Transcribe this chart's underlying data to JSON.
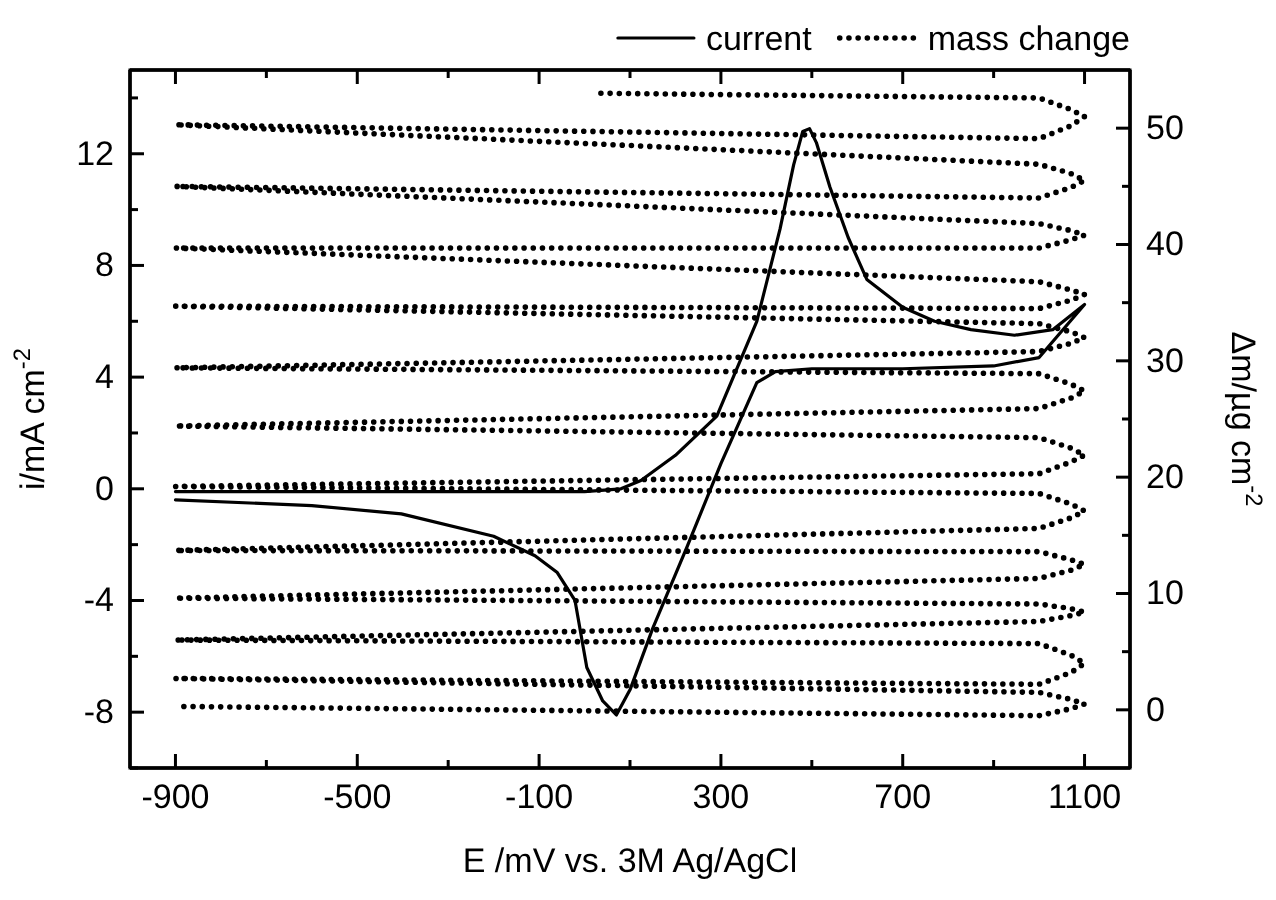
{
  "chart_data": {
    "type": "line",
    "xlabel": "E /mV vs. 3M Ag/AgCl",
    "ylabel": "i/mA cm$^{-2}$",
    "y2label": "Δm/µg cm$^{-2}$",
    "xlim": [
      -1000,
      1200
    ],
    "xticks": [
      -900,
      {
        "value": -700,
        "label": null
      },
      -500,
      {
        "value": -300,
        "label": null
      },
      -100,
      {
        "value": 100,
        "label": null
      },
      300,
      {
        "value": 500,
        "label": null
      },
      700,
      {
        "value": 900,
        "label": null
      },
      1100
    ],
    "ylim": [
      -10,
      15
    ],
    "yticks": [
      {
        "value": -10,
        "label": null
      },
      -8,
      {
        "value": -6,
        "label": null
      },
      -4,
      {
        "value": -2,
        "label": null
      },
      0,
      {
        "value": 2,
        "label": null
      },
      4,
      {
        "value": 6,
        "label": null
      },
      8,
      {
        "value": 10,
        "label": null
      },
      12,
      {
        "value": 14,
        "label": null
      }
    ],
    "y2lim": [
      -5,
      55
    ],
    "y2ticks": [
      0,
      {
        "value": 5,
        "label": null
      },
      10,
      {
        "value": 15,
        "label": null
      },
      20,
      {
        "value": 25,
        "label": null
      },
      30,
      {
        "value": 35,
        "label": null
      },
      40,
      {
        "value": 45,
        "label": null
      },
      50
    ],
    "legend": "top right",
    "grid": false,
    "marker": "none",
    "series": [
      {
        "name": "current",
        "color": "#000000",
        "line_style": "solid",
        "x": [
          -900,
          -500,
          -100,
          0,
          80,
          124,
          200,
          291,
          379,
          430,
          460,
          480,
          495,
          510,
          540,
          580,
          621,
          700,
          770,
          850,
          946,
          1030,
          1100,
          1000,
          900,
          700,
          500,
          420,
          379,
          300,
          225,
          150,
          100,
          70,
          40,
          5,
          -21,
          -60,
          -109,
          -200,
          -403,
          -600,
          -900
        ],
        "values": [
          -0.1,
          -0.1,
          -0.1,
          -0.1,
          0.0,
          0.3,
          1.2,
          2.6,
          6.0,
          9.3,
          11.6,
          12.8,
          12.9,
          12.4,
          10.8,
          9.0,
          7.5,
          6.5,
          6.0,
          5.7,
          5.5,
          5.7,
          6.6,
          4.7,
          4.4,
          4.3,
          4.3,
          4.2,
          3.8,
          0.9,
          -2.1,
          -5.0,
          -7.2,
          -8.1,
          -7.6,
          -6.4,
          -4.0,
          -3.0,
          -2.4,
          -1.7,
          -0.9,
          -0.6,
          -0.4
        ]
      },
      {
        "name": "mass change",
        "color": "#000000",
        "line_style": "dotted",
        "axis": "y2",
        "x": [
          36,
          1000,
          1070,
          1100,
          1070,
          1000,
          -900,
          1000,
          1070,
          1100,
          1070,
          1000,
          -900,
          1000,
          1070,
          1100,
          1070,
          1000,
          -900,
          1000,
          1070,
          1100,
          1070,
          1000,
          -900,
          1000,
          1070,
          1100,
          1070,
          1000,
          -900,
          1000,
          1070,
          1100,
          1070,
          1000,
          -900,
          1000,
          1070,
          1100,
          1070,
          1000,
          -900,
          1000,
          1070,
          1100,
          1070,
          1000,
          -900,
          1000,
          1070,
          1100,
          1070,
          1000,
          -900,
          1000,
          1070,
          1100,
          1070,
          1000,
          -900,
          1000,
          1070,
          1100,
          1070,
          1000,
          -900,
          1000,
          1070,
          1100,
          1070,
          1000,
          -900
        ],
        "values": [
          53.0,
          52.6,
          51.6,
          51.0,
          50.2,
          49.1,
          50.3,
          46.9,
          46.1,
          45.5,
          44.9,
          44.0,
          45.0,
          41.8,
          41.2,
          40.8,
          40.4,
          39.7,
          39.7,
          36.8,
          36.1,
          35.7,
          35.2,
          34.5,
          34.7,
          33.2,
          32.5,
          32.0,
          31.5,
          30.8,
          29.4,
          28.9,
          28.0,
          27.4,
          26.8,
          25.9,
          24.4,
          23.4,
          22.5,
          21.9,
          21.3,
          20.3,
          19.2,
          18.6,
          17.7,
          17.1,
          16.5,
          15.6,
          13.7,
          13.6,
          12.9,
          12.5,
          12.0,
          11.3,
          9.6,
          9.1,
          8.7,
          8.4,
          8.1,
          7.6,
          6.0,
          5.7,
          4.7,
          4.0,
          3.2,
          2.2,
          2.7,
          1.5,
          0.9,
          0.5,
          0.1,
          -0.5,
          0.3
        ]
      }
    ]
  }
}
